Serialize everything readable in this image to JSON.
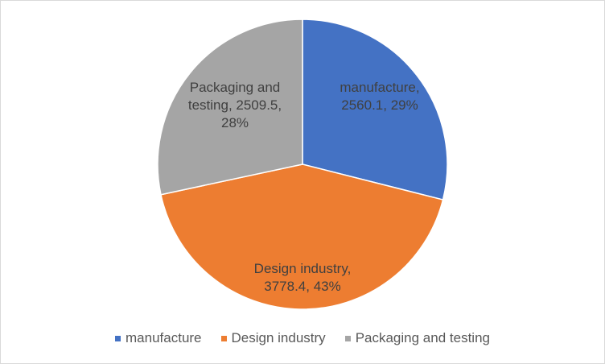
{
  "chart_data": {
    "type": "pie",
    "title": "",
    "slices": [
      {
        "name": "manufacture",
        "value": 2560.1,
        "percent": 29,
        "color": "#4472C4",
        "label_lines": [
          "manufacture,",
          "2560.1, 29%"
        ]
      },
      {
        "name": "Design industry",
        "value": 3778.4,
        "percent": 43,
        "color": "#ED7D31",
        "label_lines": [
          "Design industry,",
          "3778.4, 43%"
        ]
      },
      {
        "name": "Packaging and testing",
        "value": 2509.5,
        "percent": 28,
        "color": "#A5A5A5",
        "label_lines": [
          "Packaging and",
          "testing, 2509.5,",
          "28%"
        ]
      }
    ],
    "legend_position": "bottom"
  }
}
